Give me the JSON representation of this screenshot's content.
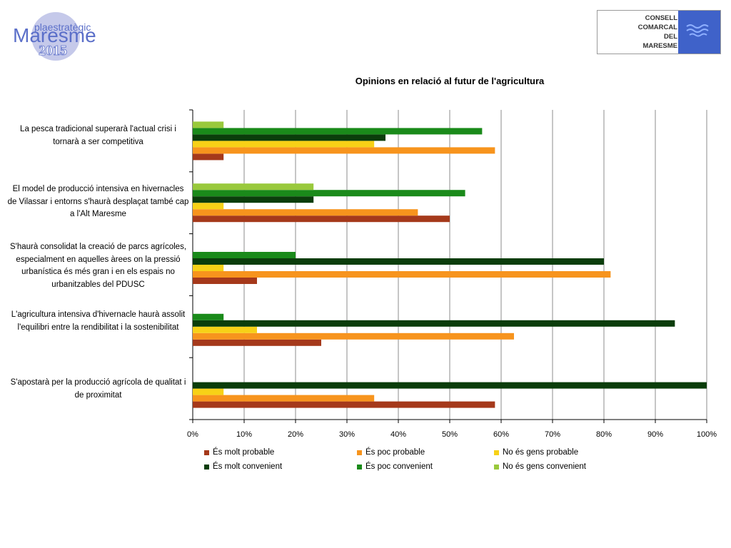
{
  "header": {
    "left_logo": {
      "line1": "plaestratègic",
      "line2": "Maresme",
      "line3": "2015",
      "circle_color": "#c5c9ea",
      "text_color": "#5b6fc9"
    },
    "right_logo": {
      "lines": [
        "CONSELL",
        "COMARCAL",
        "DEL",
        "MARESME"
      ],
      "emblem_color": "#3f62c9"
    }
  },
  "chart_data": {
    "type": "bar",
    "orientation": "horizontal",
    "title": "Opinions en relació al futur de l'agricultura",
    "categories": [
      "La pesca tradicional superarà l'actual crisi i tornarà a ser competitiva",
      "El model de producció intensiva en hivernacles de Vilassar i entorns s'haurà desplaçat també cap a l'Alt Maresme",
      "S'haurà consolidat la creació de parcs agrícoles, especialment en aquelles àrees on la pressió urbanística és més gran i en els espais no urbanitzables del PDUSC",
      "L'agricultura intensiva d'hivernacle haurà assolit l'equilibri entre la rendibilitat i la sostenibilitat",
      "S'apostarà per la producció agrícola de qualitat i de proximitat"
    ],
    "x_ticks": [
      "0%",
      "10%",
      "20%",
      "30%",
      "40%",
      "50%",
      "60%",
      "70%",
      "80%",
      "90%",
      "100%"
    ],
    "xlim": [
      0,
      100
    ],
    "grid": true,
    "legend_position": "bottom",
    "series": [
      {
        "name": "És molt probable",
        "color": "#a5391b",
        "values": [
          6,
          50,
          12.5,
          25,
          58.8
        ]
      },
      {
        "name": "És poc probable",
        "color": "#f7941d",
        "values": [
          58.8,
          43.8,
          81.3,
          62.5,
          35.3
        ]
      },
      {
        "name": "No és gens probable",
        "color": "#f7d117",
        "values": [
          35.3,
          6,
          6,
          12.5,
          6
        ]
      },
      {
        "name": "És molt convenient",
        "color": "#0b3d0b",
        "values": [
          37.5,
          23.5,
          80,
          93.8,
          100
        ]
      },
      {
        "name": "És poc convenient",
        "color": "#1a8a1a",
        "values": [
          56.3,
          53,
          20,
          6,
          0
        ]
      },
      {
        "name": "No és gens convenient",
        "color": "#99c93c",
        "values": [
          6,
          23.5,
          0,
          0,
          0
        ]
      }
    ]
  }
}
